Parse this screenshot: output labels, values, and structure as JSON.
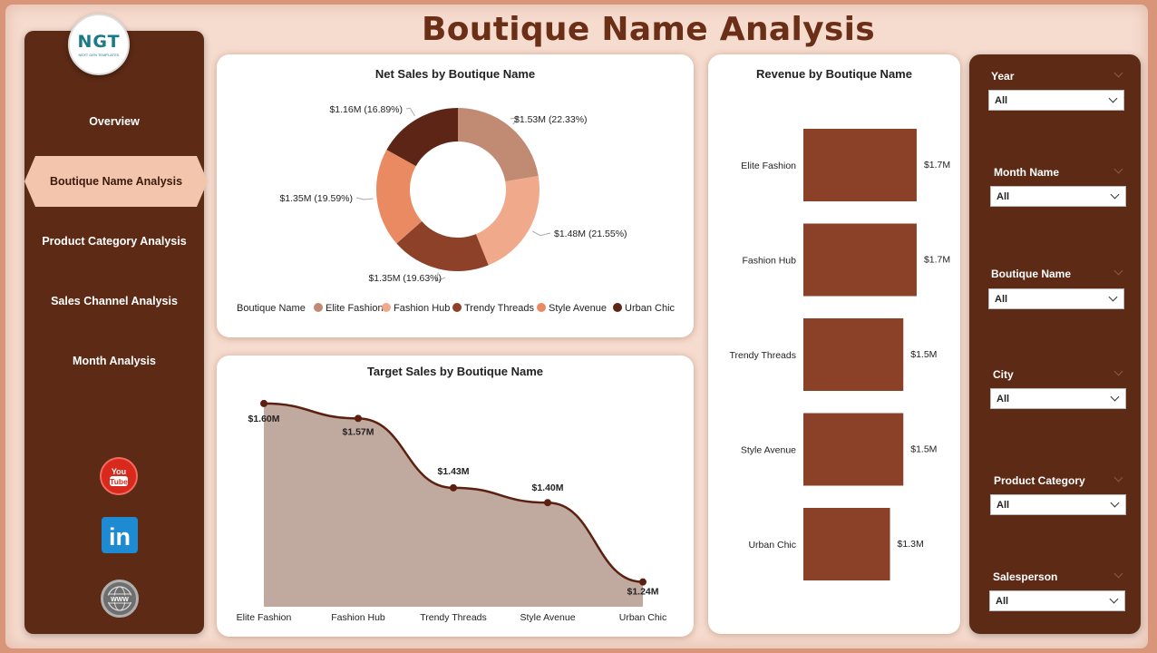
{
  "page": {
    "title": "Boutique Name Analysis"
  },
  "logo": {
    "text": "NGT",
    "subtext": "NEXT GEN TEMPLATES"
  },
  "nav": {
    "items": [
      {
        "label": "Overview",
        "active": false
      },
      {
        "label": "Boutique Name Analysis",
        "active": true
      },
      {
        "label": "Product Category Analysis",
        "active": false
      },
      {
        "label": "Sales Channel Analysis",
        "active": false
      },
      {
        "label": "Month Analysis",
        "active": false
      }
    ],
    "social": [
      {
        "icon": "youtube-icon",
        "label": "You Tube",
        "color": "#e62117"
      },
      {
        "icon": "linkedin-icon",
        "label": "in",
        "color": "#1e8ad1"
      },
      {
        "icon": "website-icon",
        "label": "WWW",
        "color": "#8a8a8a"
      }
    ]
  },
  "colors": {
    "elite": "#c18b73",
    "hub": "#f0a98a",
    "trendy": "#8c4128",
    "style": "#ea8a62",
    "urban": "#5c2515",
    "bar": "#8a4128",
    "area_fill": "#c0aaa0",
    "area_line": "#5c2010"
  },
  "filters": [
    {
      "label": "Year",
      "value": "All"
    },
    {
      "label": "Month Name",
      "value": "All"
    },
    {
      "label": "Boutique Name",
      "value": "All"
    },
    {
      "label": "City",
      "value": "All"
    },
    {
      "label": "Product Category",
      "value": "All"
    },
    {
      "label": "Salesperson",
      "value": "All"
    }
  ],
  "chart_data": [
    {
      "type": "pie",
      "title": "Net Sales by Boutique Name",
      "legend_title": "Boutique Name",
      "legend_position": "bottom",
      "categories": [
        "Elite Fashion",
        "Fashion Hub",
        "Trendy Threads",
        "Style Avenue",
        "Urban Chic"
      ],
      "values": [
        22.33,
        21.55,
        19.63,
        19.59,
        16.89
      ],
      "labels": [
        "$1.53M (22.33%)",
        "$1.48M (21.55%)",
        "$1.35M (19.63%)",
        "$1.35M (19.59%)",
        "$1.16M (16.89%)"
      ]
    },
    {
      "type": "bar",
      "orientation": "horizontal",
      "title": "Revenue by Boutique Name",
      "categories": [
        "Elite Fashion",
        "Fashion Hub",
        "Trendy Threads",
        "Style Avenue",
        "Urban Chic"
      ],
      "values": [
        1.7,
        1.7,
        1.5,
        1.5,
        1.3
      ],
      "labels": [
        "$1.7M",
        "$1.7M",
        "$1.5M",
        "$1.5M",
        "$1.3M"
      ],
      "xlim": [
        0,
        2
      ]
    },
    {
      "type": "area",
      "title": "Target Sales by Boutique Name",
      "categories": [
        "Elite Fashion",
        "Fashion Hub",
        "Trendy Threads",
        "Style Avenue",
        "Urban Chic"
      ],
      "values": [
        1.6,
        1.57,
        1.43,
        1.4,
        1.24
      ],
      "labels": [
        "$1.60M",
        "$1.57M",
        "$1.43M",
        "$1.40M",
        "$1.24M"
      ],
      "ylim": [
        1.19,
        1.62
      ]
    }
  ]
}
